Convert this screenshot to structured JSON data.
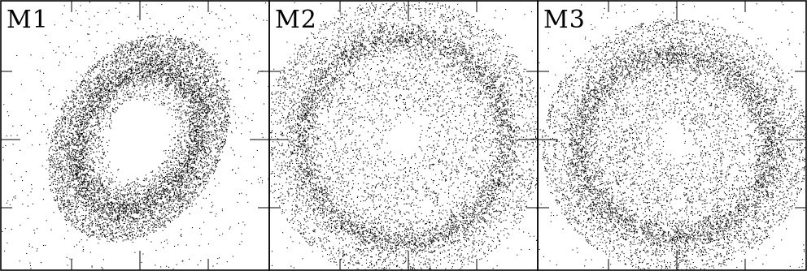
{
  "panels": [
    {
      "label": "M1"
    },
    {
      "label": "M2"
    },
    {
      "label": "M3"
    }
  ],
  "colors": {
    "ink": "#000000",
    "background": "#ffffff"
  }
}
